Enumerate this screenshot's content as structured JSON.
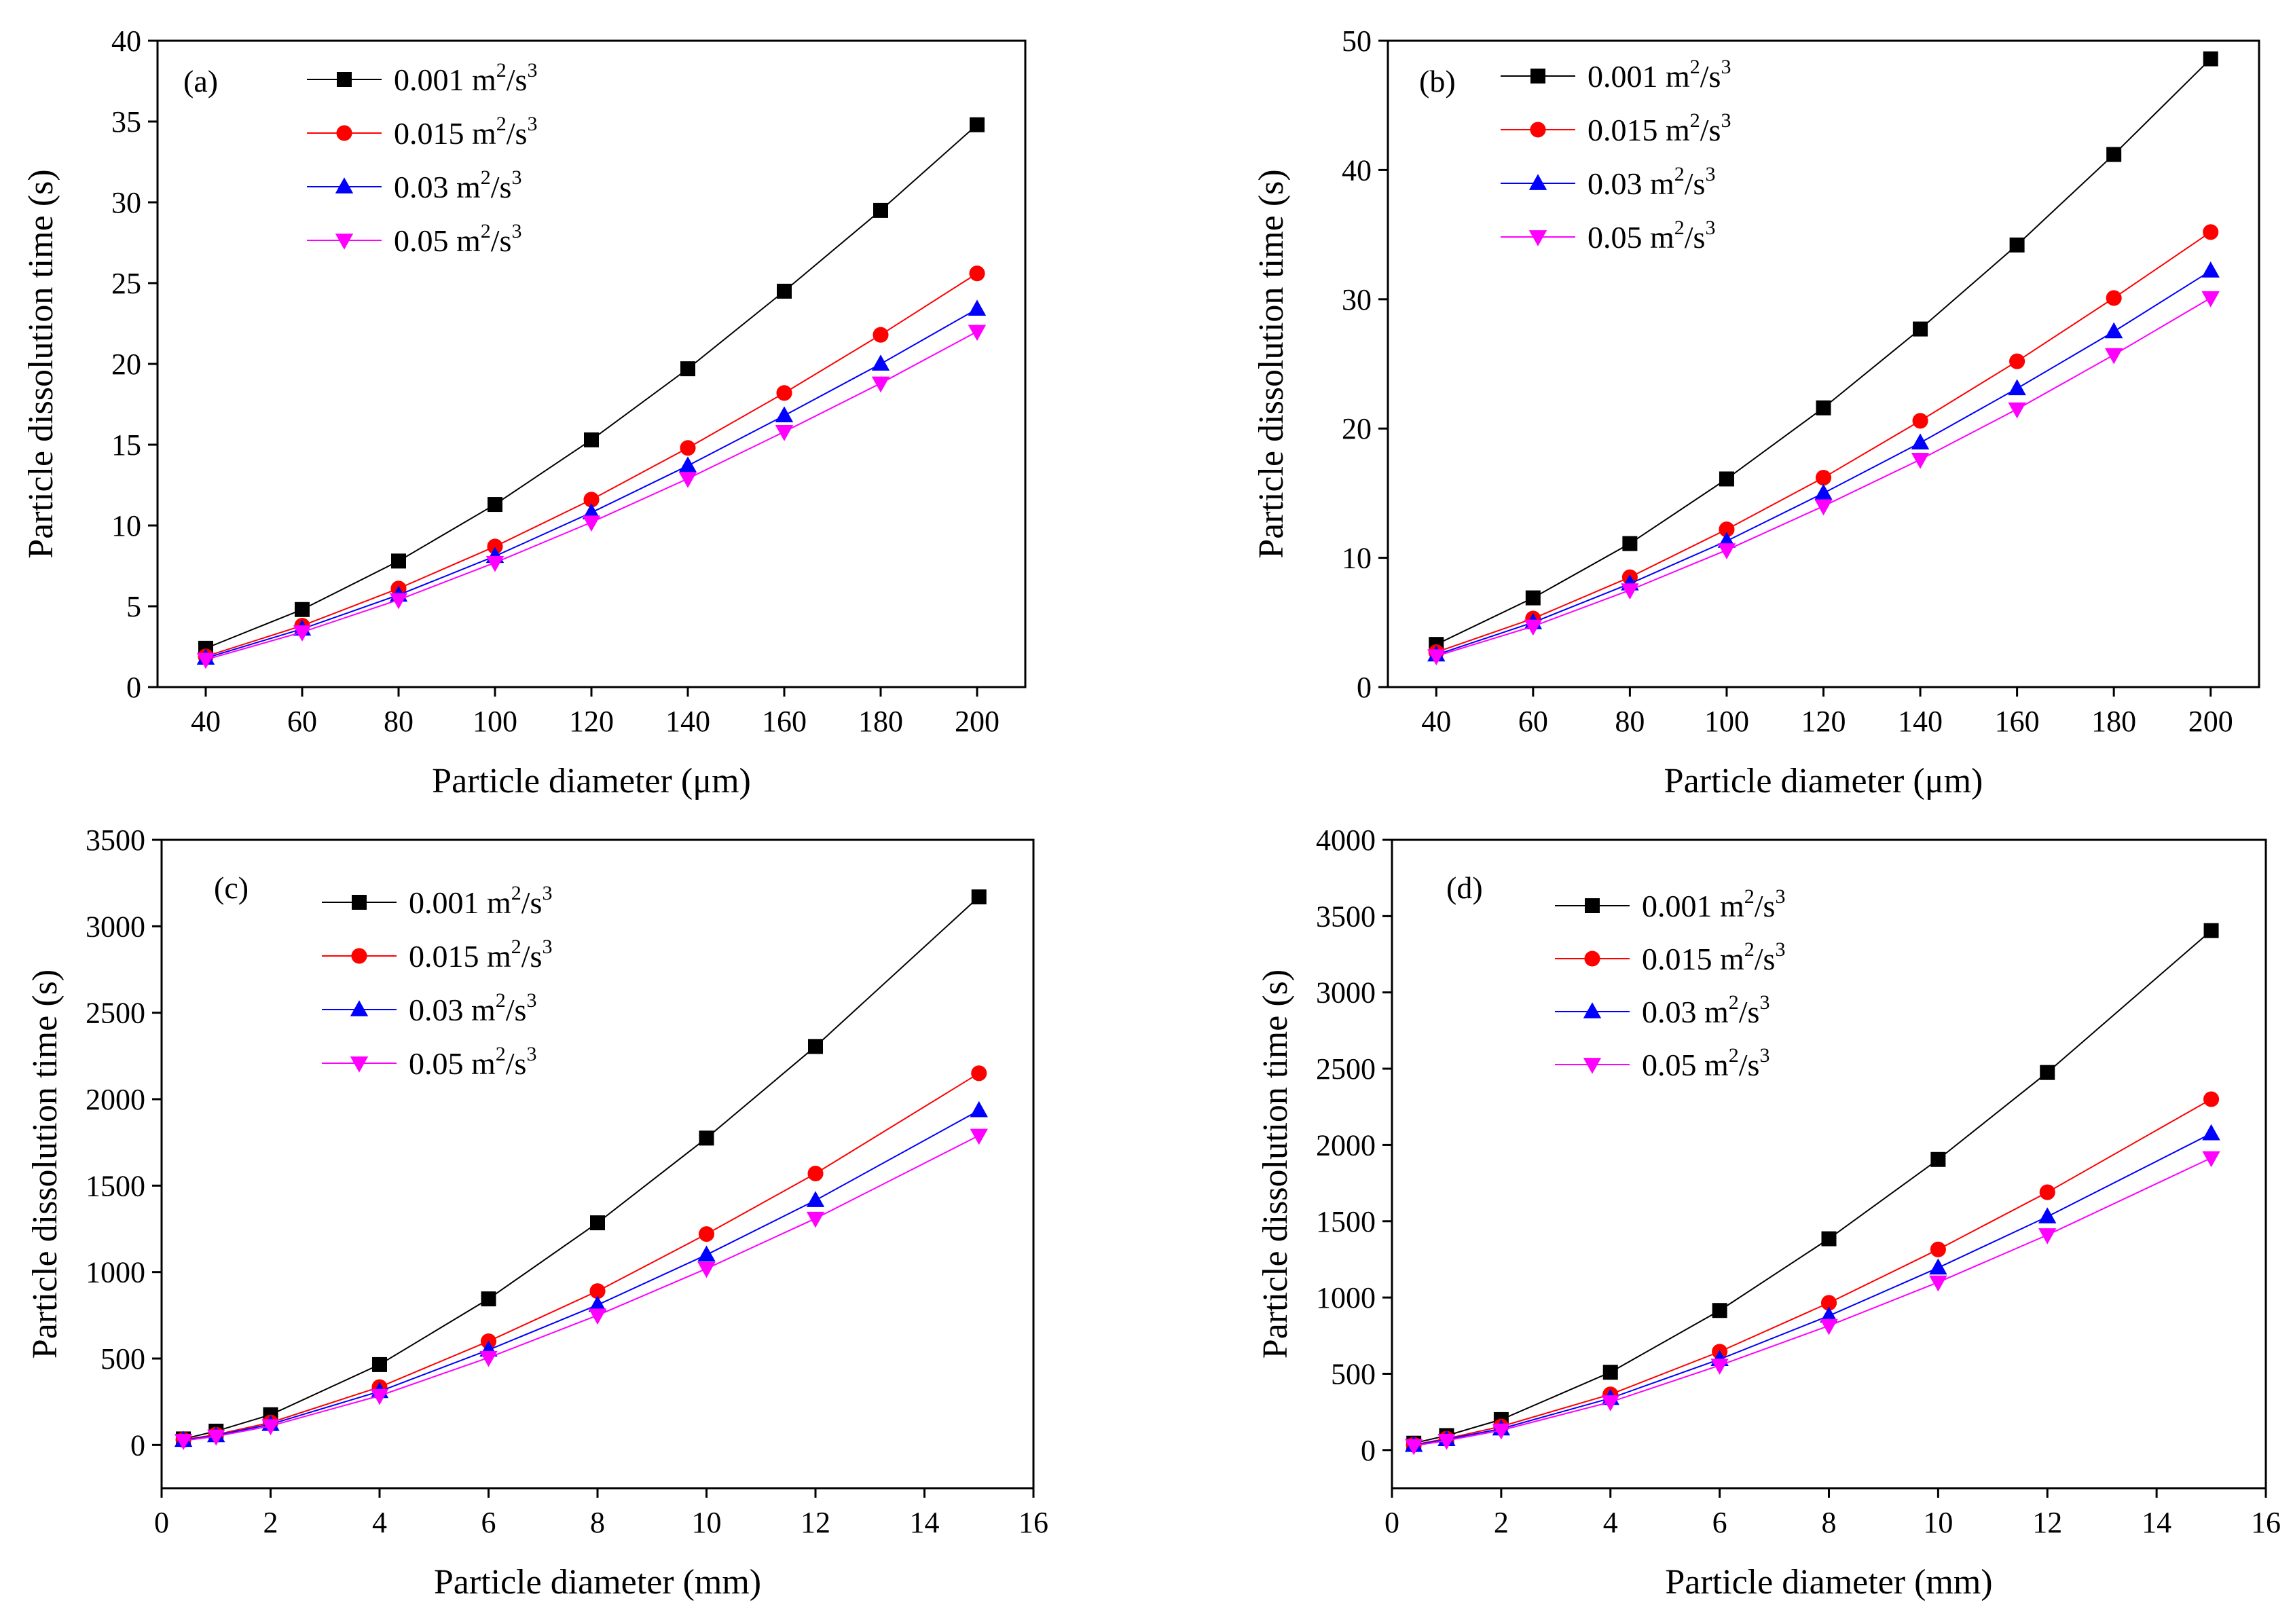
{
  "chart_data": [
    {
      "type": "line",
      "panel_label": "(a)",
      "xlabel": "Particle diameter (μm)",
      "ylabel": "Particle dissolution time (s)",
      "xlim": [
        30,
        210
      ],
      "ylim": [
        0,
        40
      ],
      "xticks": [
        40,
        60,
        80,
        100,
        120,
        140,
        160,
        180,
        200
      ],
      "yticks": [
        0,
        5,
        10,
        15,
        20,
        25,
        30,
        35,
        40
      ],
      "legend": "top-left",
      "grid": false,
      "x": [
        40,
        60,
        80,
        100,
        120,
        140,
        160,
        180,
        200
      ],
      "series": [
        {
          "name": "0.001 m²/s³",
          "legend": {
            "value": "0.001",
            "unit": "m",
            "e1": "2",
            "mid": "/s",
            "e2": "3"
          },
          "marker": "square",
          "color": "#000000",
          "values": [
            2.4,
            4.8,
            7.8,
            11.3,
            15.3,
            19.7,
            24.5,
            29.5,
            34.8
          ]
        },
        {
          "name": "0.015 m²/s³",
          "legend": {
            "value": "0.015",
            "unit": "m",
            "e1": "2",
            "mid": "/s",
            "e2": "3"
          },
          "marker": "circle",
          "color": "#ff0000",
          "values": [
            1.9,
            3.8,
            6.1,
            8.7,
            11.6,
            14.8,
            18.2,
            21.8,
            25.6
          ]
        },
        {
          "name": "0.03 m²/s³",
          "legend": {
            "value": "0.03",
            "unit": "m",
            "e1": "2",
            "mid": "/s",
            "e2": "3"
          },
          "marker": "triangle-up",
          "color": "#0000ff",
          "values": [
            1.8,
            3.6,
            5.7,
            8.1,
            10.8,
            13.7,
            16.8,
            20.0,
            23.4
          ]
        },
        {
          "name": "0.05 m²/s³",
          "legend": {
            "value": "0.05",
            "unit": "m",
            "e1": "2",
            "mid": "/s",
            "e2": "3"
          },
          "marker": "triangle-down",
          "color": "#ff00ff",
          "values": [
            1.7,
            3.4,
            5.4,
            7.7,
            10.2,
            12.9,
            15.8,
            18.8,
            22.0
          ]
        }
      ]
    },
    {
      "type": "line",
      "panel_label": "(b)",
      "xlabel": "Particle diameter (μm)",
      "ylabel": "Particle dissolution time (s)",
      "xlim": [
        30,
        210
      ],
      "ylim": [
        0,
        50
      ],
      "xticks": [
        40,
        60,
        80,
        100,
        120,
        140,
        160,
        180,
        200
      ],
      "yticks": [
        0,
        10,
        20,
        30,
        40,
        50
      ],
      "legend": "top-left",
      "grid": false,
      "x": [
        40,
        60,
        80,
        100,
        120,
        140,
        160,
        180,
        200
      ],
      "series": [
        {
          "name": "0.001 m²/s³",
          "legend": {
            "value": "0.001",
            "unit": "m",
            "e1": "2",
            "mid": "/s",
            "e2": "3"
          },
          "marker": "square",
          "color": "#000000",
          "values": [
            3.3,
            6.9,
            11.1,
            16.1,
            21.6,
            27.7,
            34.2,
            41.2,
            48.6
          ]
        },
        {
          "name": "0.015 m²/s³",
          "legend": {
            "value": "0.015",
            "unit": "m",
            "e1": "2",
            "mid": "/s",
            "e2": "3"
          },
          "marker": "circle",
          "color": "#ff0000",
          "values": [
            2.7,
            5.3,
            8.5,
            12.2,
            16.2,
            20.6,
            25.2,
            30.1,
            35.2
          ]
        },
        {
          "name": "0.03 m²/s³",
          "legend": {
            "value": "0.03",
            "unit": "m",
            "e1": "2",
            "mid": "/s",
            "e2": "3"
          },
          "marker": "triangle-up",
          "color": "#0000ff",
          "values": [
            2.5,
            5.0,
            8.0,
            11.3,
            15.0,
            18.9,
            23.1,
            27.5,
            32.2
          ]
        },
        {
          "name": "0.05 m²/s³",
          "legend": {
            "value": "0.05",
            "unit": "m",
            "e1": "2",
            "mid": "/s",
            "e2": "3"
          },
          "marker": "triangle-down",
          "color": "#ff00ff",
          "values": [
            2.4,
            4.7,
            7.5,
            10.6,
            14.0,
            17.6,
            21.5,
            25.7,
            30.1
          ]
        }
      ]
    },
    {
      "type": "line",
      "panel_label": "(c)",
      "xlabel": "Particle diameter (mm)",
      "ylabel": "Particle dissolution time (s)",
      "xlim": [
        0,
        16
      ],
      "ylim": [
        -250,
        3500
      ],
      "xticks": [
        0,
        2,
        4,
        6,
        8,
        10,
        12,
        14,
        16
      ],
      "yticks": [
        0,
        500,
        1000,
        1500,
        2000,
        2500,
        3000,
        3500
      ],
      "legend": "top-left",
      "grid": false,
      "x": [
        0.4,
        1,
        2,
        4,
        6,
        8,
        10,
        12,
        15
      ],
      "series": [
        {
          "name": "0.001 m²/s³",
          "legend": {
            "value": "0.001",
            "unit": "m",
            "e1": "2",
            "mid": "/s",
            "e2": "3"
          },
          "marker": "square",
          "color": "#000000",
          "values": [
            35,
            80,
            175,
            465,
            845,
            1285,
            1775,
            2305,
            3170
          ]
        },
        {
          "name": "0.015 m²/s³",
          "legend": {
            "value": "0.015",
            "unit": "m",
            "e1": "2",
            "mid": "/s",
            "e2": "3"
          },
          "marker": "circle",
          "color": "#ff0000",
          "values": [
            30,
            60,
            130,
            335,
            600,
            890,
            1220,
            1570,
            2150
          ]
        },
        {
          "name": "0.03 m²/s³",
          "legend": {
            "value": "0.03",
            "unit": "m",
            "e1": "2",
            "mid": "/s",
            "e2": "3"
          },
          "marker": "triangle-up",
          "color": "#0000ff",
          "values": [
            28,
            55,
            120,
            310,
            550,
            810,
            1100,
            1415,
            1935
          ]
        },
        {
          "name": "0.05 m²/s³",
          "legend": {
            "value": "0.05",
            "unit": "m",
            "e1": "2",
            "mid": "/s",
            "e2": "3"
          },
          "marker": "triangle-down",
          "color": "#ff00ff",
          "values": [
            25,
            50,
            110,
            285,
            505,
            750,
            1020,
            1310,
            1790
          ]
        }
      ]
    },
    {
      "type": "line",
      "panel_label": "(d)",
      "xlabel": "Particle diameter (mm)",
      "ylabel": "Particle dissolution time (s)",
      "xlim": [
        0,
        16
      ],
      "ylim": [
        -250,
        4000
      ],
      "xticks": [
        0,
        2,
        4,
        6,
        8,
        10,
        12,
        14,
        16
      ],
      "yticks": [
        0,
        500,
        1000,
        1500,
        2000,
        2500,
        3000,
        3500,
        4000
      ],
      "legend": "top-left",
      "grid": false,
      "x": [
        0.4,
        1,
        2,
        4,
        6,
        8,
        10,
        12,
        15
      ],
      "series": [
        {
          "name": "0.001 m²/s³",
          "legend": {
            "value": "0.001",
            "unit": "m",
            "e1": "2",
            "mid": "/s",
            "e2": "3"
          },
          "marker": "square",
          "color": "#000000",
          "values": [
            45,
            95,
            200,
            510,
            915,
            1385,
            1905,
            2475,
            3405
          ]
        },
        {
          "name": "0.015 m²/s³",
          "legend": {
            "value": "0.015",
            "unit": "m",
            "e1": "2",
            "mid": "/s",
            "e2": "3"
          },
          "marker": "circle",
          "color": "#ff0000",
          "values": [
            35,
            75,
            155,
            365,
            645,
            965,
            1315,
            1690,
            2300
          ]
        },
        {
          "name": "0.03 m²/s³",
          "legend": {
            "value": "0.03",
            "unit": "m",
            "e1": "2",
            "mid": "/s",
            "e2": "3"
          },
          "marker": "triangle-up",
          "color": "#0000ff",
          "values": [
            32,
            70,
            140,
            340,
            595,
            880,
            1195,
            1530,
            2075
          ]
        },
        {
          "name": "0.05 m²/s³",
          "legend": {
            "value": "0.05",
            "unit": "m",
            "e1": "2",
            "mid": "/s",
            "e2": "3"
          },
          "marker": "triangle-down",
          "color": "#ff00ff",
          "values": [
            28,
            62,
            130,
            315,
            555,
            815,
            1100,
            1410,
            1915
          ]
        }
      ]
    }
  ]
}
